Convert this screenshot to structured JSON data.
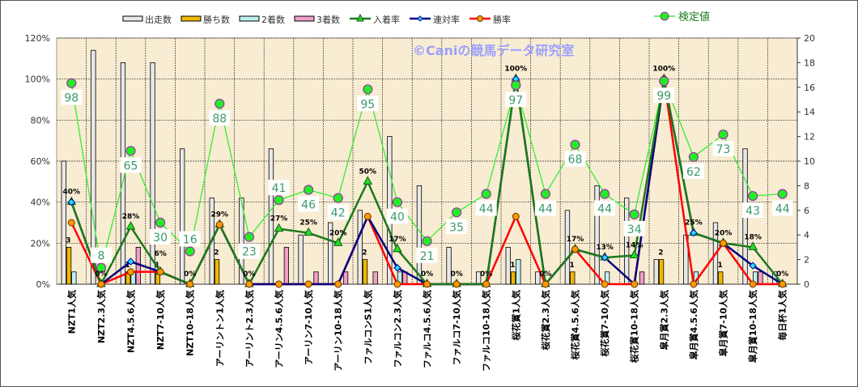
{
  "chart_data": {
    "type": "bar+line",
    "watermark": "©Caniの競馬データ研究室",
    "categories": [
      "NZT1人気",
      "NZT2.3人気",
      "NZT4.5.6人気",
      "NZT7-10人気",
      "NZT10-18人気",
      "アーリントン1人気",
      "アーリント2.3人気",
      "アーリン4.5.6人気",
      "アーリン7-10人気",
      "アーリン10-18人気",
      "ファルコンS1人気",
      "ファルコン2.3人気",
      "ファルコ4.5.6人気",
      "ファルコ7-10人気",
      "ファルコ10-18人気",
      "桜花賞1人気",
      "桜花賞2.3人気",
      "桜花賞4.5.6人気",
      "桜花賞7-10人気",
      "桜花賞10-18人気",
      "皐月賞2.3人気",
      "皐月賞4.5.6人気",
      "皐月賞7-10人気",
      "皐月賞10-18人気",
      "毎日杯1人気"
    ],
    "left_axis": {
      "ylim": [
        0,
        120
      ],
      "ticks": [
        "0%",
        "20%",
        "40%",
        "60%",
        "80%",
        "100%",
        "120%"
      ]
    },
    "right_axis": {
      "ylim": [
        0,
        20
      ],
      "ticks": [
        "0",
        "2",
        "4",
        "6",
        "8",
        "10",
        "12",
        "14",
        "16",
        "18",
        "20"
      ]
    },
    "bar_series": [
      {
        "name": "出走数",
        "color": "#e8e8e8",
        "values": [
          10,
          19,
          18,
          18,
          11,
          7,
          7,
          11,
          4,
          5,
          6,
          12,
          8,
          3,
          1,
          3,
          1,
          6,
          8,
          7,
          2,
          4,
          5,
          11,
          1
        ]
      },
      {
        "name": "勝ち数",
        "color": "#f0b800",
        "values": [
          3,
          0,
          1,
          1,
          0,
          2,
          0,
          0,
          0,
          0,
          2,
          0,
          0,
          0,
          0,
          1,
          0,
          1,
          0,
          0,
          2,
          0,
          1,
          0,
          0
        ]
      },
      {
        "name": "2着数",
        "color": "#c0f0f0",
        "values": [
          1,
          0,
          1,
          0,
          0,
          0,
          0,
          0,
          0,
          0,
          0,
          1,
          0,
          0,
          0,
          2,
          0,
          0,
          1,
          0,
          0,
          1,
          0,
          1,
          0
        ]
      },
      {
        "name": "3着数",
        "color": "#f0a0c8",
        "values": [
          0,
          0,
          3,
          0,
          0,
          0,
          0,
          3,
          1,
          1,
          1,
          1,
          0,
          0,
          0,
          0,
          0,
          0,
          0,
          1,
          0,
          0,
          0,
          1,
          0
        ]
      }
    ],
    "line_series": [
      {
        "name": "入着率",
        "color": "#1a7a1a",
        "marker": "triangle",
        "values": [
          40,
          0,
          28,
          6,
          0,
          29,
          0,
          27,
          25,
          20,
          50,
          17,
          0,
          0,
          0,
          100,
          0,
          17,
          13,
          14,
          100,
          25,
          20,
          18,
          0
        ]
      },
      {
        "name": "連対率",
        "color": "#000080",
        "marker": "diamond",
        "values": [
          40,
          0,
          11,
          6,
          0,
          29,
          0,
          0,
          0,
          0,
          33,
          8,
          0,
          0,
          0,
          100,
          0,
          17,
          13,
          0,
          100,
          25,
          20,
          9,
          0
        ]
      },
      {
        "name": "勝率",
        "color": "#ff0000",
        "marker": "circle",
        "values": [
          30,
          0,
          6,
          6,
          0,
          29,
          0,
          0,
          0,
          0,
          33,
          0,
          0,
          0,
          0,
          33,
          0,
          17,
          0,
          0,
          100,
          0,
          20,
          0,
          0
        ]
      }
    ],
    "test_series": {
      "name": "検定値",
      "color": "#33ee33",
      "values": [
        98,
        8,
        65,
        30,
        16,
        88,
        23,
        41,
        46,
        42,
        95,
        40,
        21,
        35,
        44,
        97,
        44,
        68,
        44,
        34,
        99,
        62,
        73,
        43,
        44
      ]
    }
  }
}
